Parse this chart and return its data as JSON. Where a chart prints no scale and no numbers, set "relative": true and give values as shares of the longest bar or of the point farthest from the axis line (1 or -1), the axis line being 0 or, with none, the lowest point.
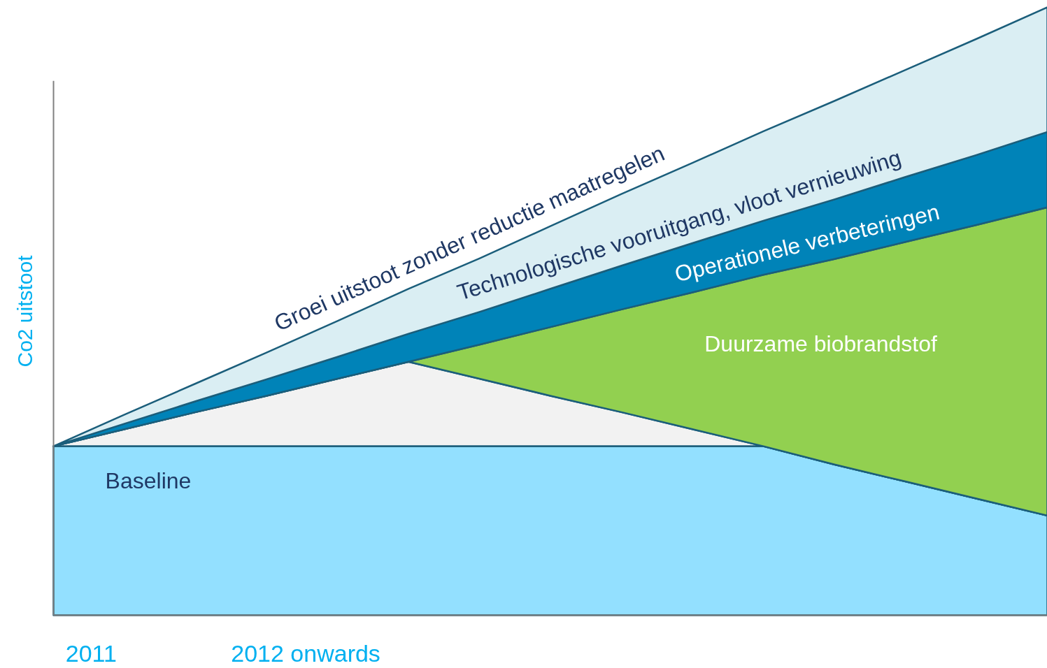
{
  "chart_data": {
    "type": "area",
    "relative": true,
    "stacked": true,
    "ylabel": "Co2 uitstoot",
    "categories": [
      null,
      null,
      null,
      null,
      null,
      null,
      null,
      null,
      null,
      null,
      null,
      null,
      null,
      null,
      null
    ],
    "series": [
      {
        "name": "Baseline",
        "color": "#93e0ff",
        "values": [
          0.278,
          0.278,
          0.278,
          0.278,
          0.278,
          0.278,
          0.278,
          0.278,
          0.278,
          0.278,
          0.278,
          0.248,
          0.22,
          0.192,
          0.164
        ]
      },
      {
        "color": "#f2f2f2",
        "values": [
          0,
          0.028,
          0.056,
          0.083,
          0.111,
          0.139,
          0.111,
          0.083,
          0.056,
          0.028,
          0,
          0,
          0,
          0,
          0
        ]
      },
      {
        "name": "Duurzame biobrandstof",
        "color": "#92d050",
        "values": [
          0,
          0,
          0,
          0,
          0,
          0,
          0.056,
          0.113,
          0.169,
          0.225,
          0.282,
          0.338,
          0.394,
          0.45,
          0.507
        ]
      },
      {
        "name": "Operationele verbeteringen",
        "color": "#0083b8",
        "values": [
          0,
          0.009,
          0.018,
          0.027,
          0.036,
          0.046,
          0.054,
          0.063,
          0.072,
          0.081,
          0.089,
          0.098,
          0.107,
          0.115,
          0.124
        ]
      },
      {
        "name": "Technologische vooruitgang, vloot vernieuwing",
        "color": "#daeef3",
        "values": [
          0,
          0.015,
          0.029,
          0.044,
          0.059,
          0.074,
          0.088,
          0.103,
          0.118,
          0.132,
          0.147,
          0.162,
          0.176,
          0.191,
          0.205
        ]
      }
    ],
    "annotations": [
      "Groei uitstoot zonder reductie maatregelen",
      "2011",
      "2012 onwards"
    ]
  }
}
